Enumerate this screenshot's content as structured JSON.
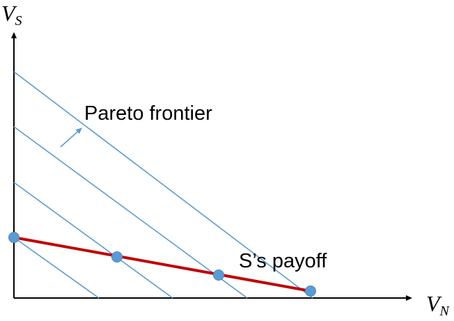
{
  "diagram": {
    "y_axis_label": {
      "main": "V",
      "sub": "S"
    },
    "x_axis_label": {
      "main": "V",
      "sub": "N"
    },
    "annotations": {
      "pareto": "Pareto frontier",
      "payoff": "S’s payoff"
    },
    "colors": {
      "axis": "#000000",
      "iso_lines": "#5b9bd5",
      "payoff_line": "#c00000",
      "points": "#5b9bd5",
      "point_stroke": "#4a86c0"
    }
  }
}
